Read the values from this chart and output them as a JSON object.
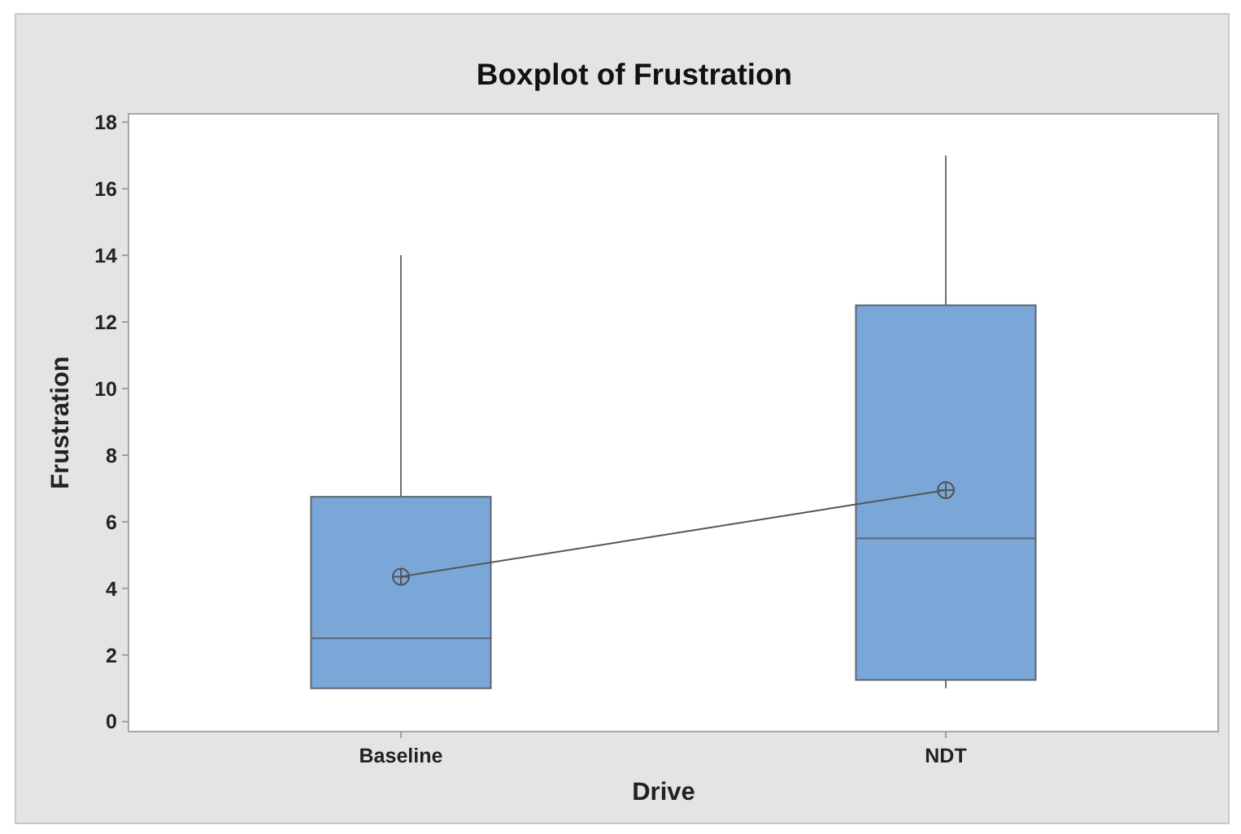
{
  "chart_data": {
    "type": "box",
    "title": "Boxplot of Frustration",
    "xlabel": "Drive",
    "ylabel": "Frustration",
    "categories": [
      "Baseline",
      "NDT"
    ],
    "ylim": [
      -0.3,
      18.25
    ],
    "yticks": [
      0,
      2,
      4,
      6,
      8,
      10,
      12,
      14,
      16,
      18
    ],
    "series": [
      {
        "color": "#7ba7d8",
        "boxes": [
          {
            "low": 1,
            "q1": 1,
            "median": 2.5,
            "q3": 6.75,
            "high": 14,
            "mean": 4.35
          },
          {
            "low": 1,
            "q1": 1.25,
            "median": 5.5,
            "q3": 12.5,
            "high": 17,
            "mean": 6.95
          }
        ]
      },
      {
        "type": "line",
        "color": "#555555",
        "values": [
          4.35,
          6.95
        ]
      }
    ]
  }
}
